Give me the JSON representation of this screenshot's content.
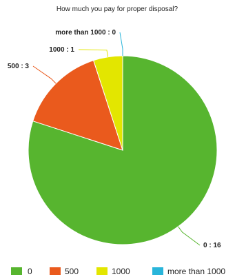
{
  "chart_data": {
    "type": "pie",
    "title": "How much you pay for proper disposal?",
    "categories": [
      "0",
      "500",
      "1000",
      "more than 1000"
    ],
    "values": [
      16,
      3,
      1,
      0
    ],
    "colors": [
      "#57b52f",
      "#ea5a1d",
      "#e3e600",
      "#29b5da"
    ],
    "slice_labels": [
      "0 : 16",
      "500 : 3",
      "1000 : 1",
      "more than 1000 : 0"
    ],
    "legend_position": "bottom",
    "start_angle": "top",
    "direction": "clockwise"
  }
}
